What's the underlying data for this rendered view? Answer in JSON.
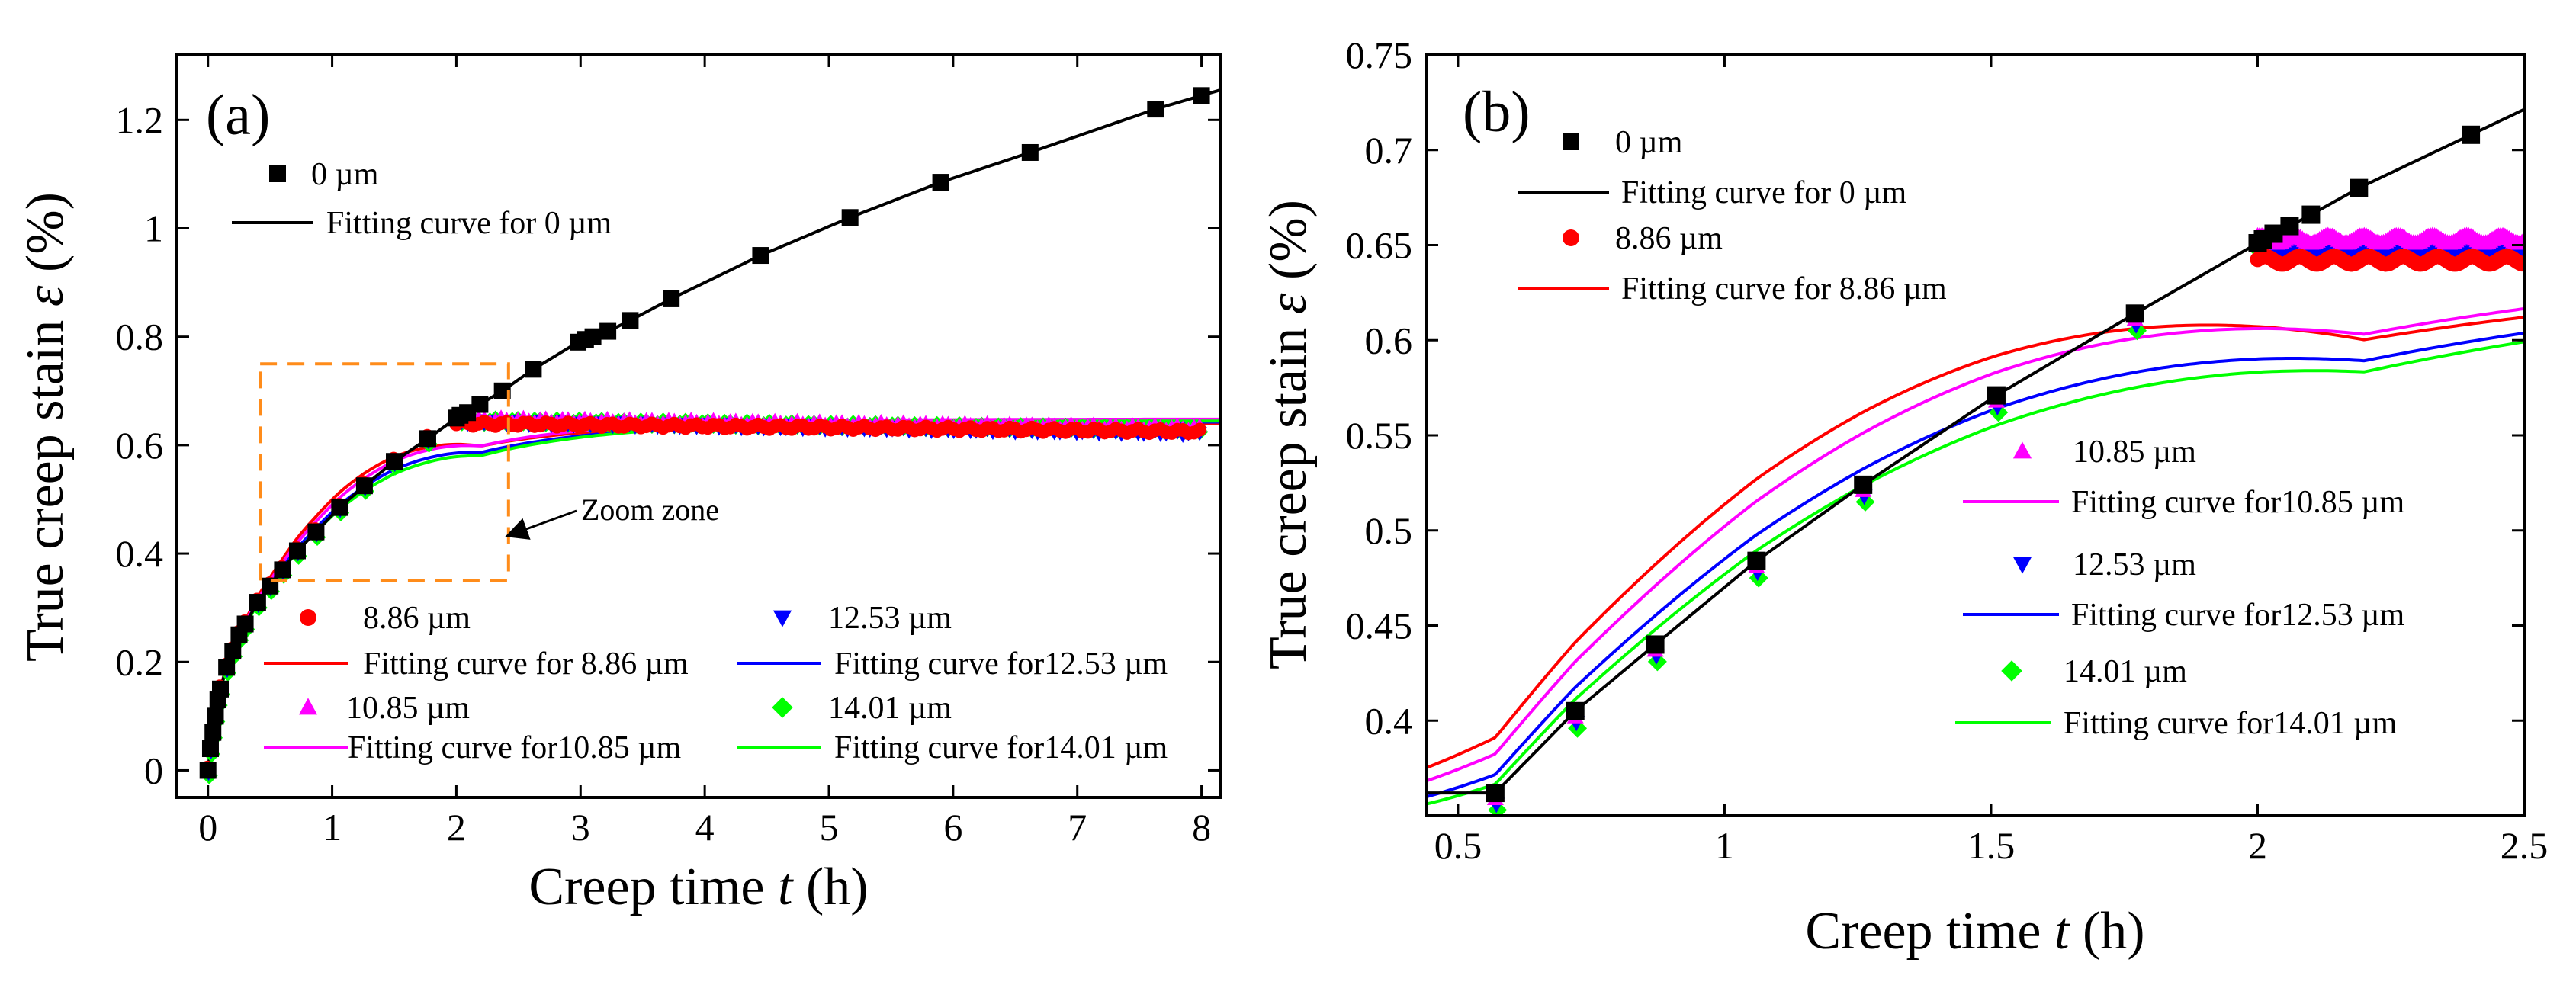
{
  "chart_data": [
    {
      "type": "scatter",
      "panel_label": "(a)",
      "xlabel_prefix": "Creep time ",
      "xlabel_var": "t",
      "xlabel_suffix": " (h)",
      "ylabel_prefix": "True creep stain ",
      "ylabel_var": "ε",
      "ylabel_suffix": " (%)",
      "xlim": [
        -0.25,
        8.15
      ],
      "ylim": [
        -0.05,
        1.32
      ],
      "xticks": [
        0,
        1,
        2,
        3,
        4,
        5,
        6,
        7,
        8
      ],
      "xtick_labels": [
        "0",
        "1",
        "2",
        "3",
        "4",
        "5",
        "6",
        "7",
        "8"
      ],
      "yticks": [
        0,
        0.2,
        0.4,
        0.6,
        0.8,
        1.0,
        1.2
      ],
      "ytick_labels": [
        "0",
        "0.2",
        "0.4",
        "0.6",
        "0.8",
        "1",
        "1.2"
      ],
      "annotation": {
        "text": "Zoom zone",
        "zoom_box": {
          "x": [
            0.42,
            2.42
          ],
          "y": [
            0.35,
            0.75
          ]
        }
      },
      "series": [
        {
          "name": "0 µm",
          "fit_name": "Fitting curve for 0 µm",
          "marker": "square",
          "color": "#000000",
          "x": [
            0,
            0.02,
            0.04,
            0.06,
            0.08,
            0.1,
            0.15,
            0.2,
            0.25,
            0.3,
            0.4,
            0.5,
            0.6,
            0.72,
            0.87,
            1.06,
            1.26,
            1.5,
            1.77,
            2.0,
            2.03,
            2.09,
            2.19,
            2.37,
            2.62,
            2.98,
            3.04,
            3.1,
            3.22,
            3.4,
            3.73,
            4.45,
            5.17,
            5.9,
            6.62,
            7.63,
            8.0
          ],
          "y": [
            0,
            0.04,
            0.07,
            0.1,
            0.13,
            0.15,
            0.19,
            0.22,
            0.25,
            0.27,
            0.31,
            0.34,
            0.37,
            0.405,
            0.44,
            0.485,
            0.525,
            0.57,
            0.612,
            0.65,
            0.655,
            0.66,
            0.675,
            0.7,
            0.74,
            0.79,
            0.795,
            0.8,
            0.81,
            0.83,
            0.87,
            0.95,
            1.02,
            1.085,
            1.14,
            1.22,
            1.245
          ]
        },
        {
          "name": "8.86 µm",
          "fit_name": "Fitting curve for 8.86 µm",
          "marker": "circle",
          "color": "#ff0000",
          "plateau": 0.64,
          "final": 0.625
        },
        {
          "name": "10.85 µm",
          "fit_name": "Fitting curve for10.85 µm",
          "marker": "triangle-up",
          "color": "#ff00ff",
          "plateau": 0.648,
          "final": 0.632
        },
        {
          "name": "12.53 µm",
          "fit_name": "Fitting curve for12.53 µm",
          "marker": "triangle-down",
          "color": "#0000ff",
          "plateau": 0.643,
          "final": 0.622
        },
        {
          "name": "14.01 µm",
          "fit_name": "Fitting curve for14.01 µm",
          "marker": "diamond",
          "color": "#00ff00",
          "plateau": 0.645,
          "final": 0.628
        }
      ]
    },
    {
      "type": "scatter",
      "panel_label": "(b)",
      "xlabel_prefix": "Creep time ",
      "xlabel_var": "t",
      "xlabel_suffix": " (h)",
      "ylabel_prefix": "True creep stain ",
      "ylabel_var": "ε",
      "ylabel_suffix": " (%)",
      "xlim": [
        0.44,
        2.5
      ],
      "ylim": [
        0.35,
        0.75
      ],
      "xticks": [
        0.5,
        1,
        1.5,
        2,
        2.5
      ],
      "xtick_labels": [
        "0.5",
        "1",
        "1.5",
        "2",
        "2.5"
      ],
      "yticks": [
        0.4,
        0.45,
        0.5,
        0.55,
        0.6,
        0.65,
        0.7,
        0.75
      ],
      "ytick_labels": [
        "0.4",
        "0.45",
        "0.5",
        "0.55",
        "0.6",
        "0.65",
        "0.7",
        "0.75"
      ],
      "series": [
        {
          "name": "0 µm",
          "fit_name": "Fitting curve for 0 µm",
          "marker": "square",
          "color": "#000000",
          "x": [
            0.57,
            0.72,
            0.87,
            1.06,
            1.26,
            1.51,
            1.77,
            2.0,
            2.01,
            2.03,
            2.06,
            2.1,
            2.19,
            2.4
          ],
          "y": [
            0.362,
            0.405,
            0.44,
            0.484,
            0.524,
            0.571,
            0.614,
            0.651,
            0.653,
            0.656,
            0.66,
            0.666,
            0.68,
            0.708
          ]
        },
        {
          "name": "8.86 µm",
          "fit_name": "Fitting curve for 8.86 µm",
          "marker": "circle",
          "color": "#ff0000",
          "plateau": 0.642
        },
        {
          "name": "10.85 µm",
          "fit_name": "Fitting curve for10.85 µm",
          "marker": "triangle-up",
          "color": "#ff00ff",
          "plateau": 0.653
        },
        {
          "name": "12.53 µm",
          "fit_name": "Fitting curve for12.53 µm",
          "marker": "triangle-down",
          "color": "#0000ff",
          "plateau": 0.646
        },
        {
          "name": "14.01 µm",
          "fit_name": "Fitting curve for14.01 µm",
          "marker": "diamond",
          "color": "#00ff00",
          "plateau": 0.648
        }
      ]
    }
  ]
}
